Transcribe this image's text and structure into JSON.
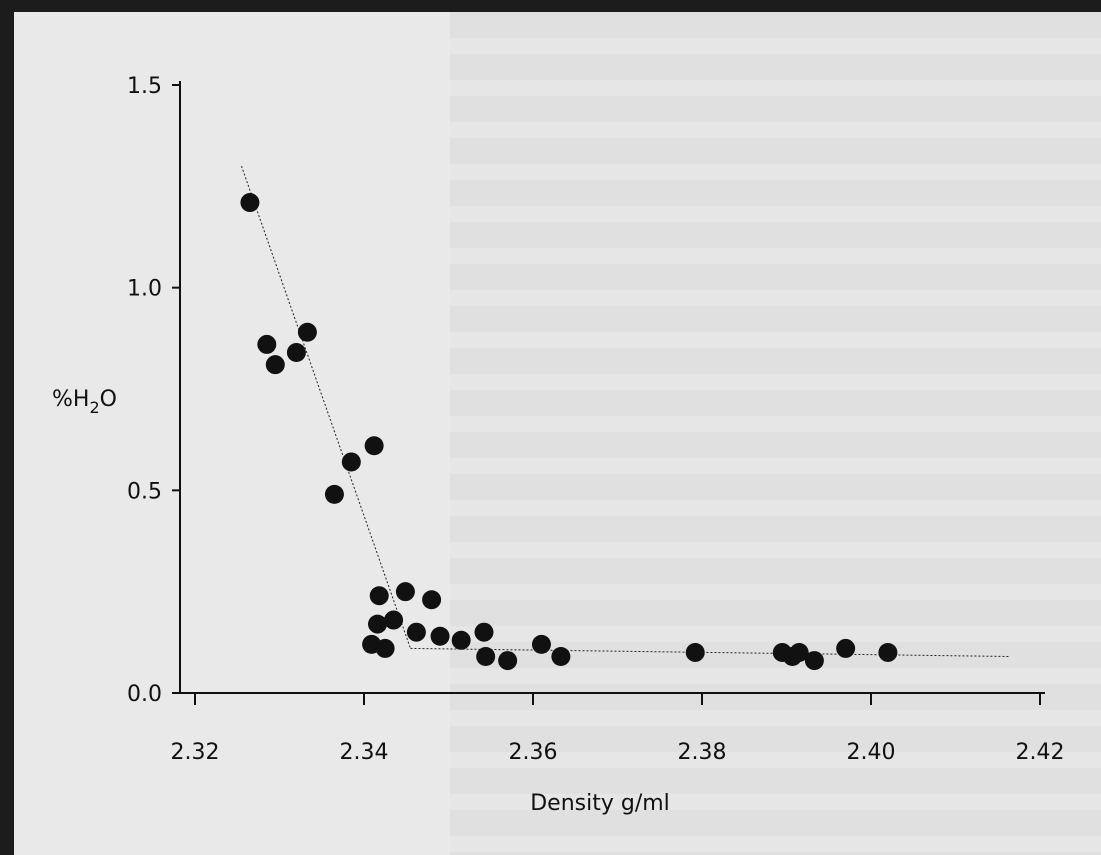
{
  "chart_data": {
    "type": "scatter",
    "xlabel": "Density g/ml",
    "ylabel_main": "%H",
    "ylabel_sub": "2",
    "ylabel_tail": "O",
    "xlim": [
      2.32,
      2.42
    ],
    "ylim": [
      0.0,
      1.5
    ],
    "x_ticks": [
      2.32,
      2.34,
      2.36,
      2.38,
      2.4,
      2.42
    ],
    "x_tick_labels": [
      "2.32",
      "2.34",
      "2.36",
      "2.38",
      "2.40",
      "2.42"
    ],
    "y_ticks": [
      0.0,
      0.5,
      1.0,
      1.5
    ],
    "y_tick_labels": [
      "0.0",
      "0.5",
      "1.0",
      "1.5"
    ],
    "grid": false,
    "points": [
      {
        "x": 2.3265,
        "y": 1.21
      },
      {
        "x": 2.3285,
        "y": 0.86
      },
      {
        "x": 2.3295,
        "y": 0.81
      },
      {
        "x": 2.332,
        "y": 0.84
      },
      {
        "x": 2.3333,
        "y": 0.89
      },
      {
        "x": 2.3385,
        "y": 0.57
      },
      {
        "x": 2.3412,
        "y": 0.61
      },
      {
        "x": 2.3365,
        "y": 0.49
      },
      {
        "x": 2.3418,
        "y": 0.24
      },
      {
        "x": 2.3449,
        "y": 0.25
      },
      {
        "x": 2.348,
        "y": 0.23
      },
      {
        "x": 2.3416,
        "y": 0.17
      },
      {
        "x": 2.3435,
        "y": 0.18
      },
      {
        "x": 2.3409,
        "y": 0.12
      },
      {
        "x": 2.3425,
        "y": 0.11
      },
      {
        "x": 2.3462,
        "y": 0.15
      },
      {
        "x": 2.349,
        "y": 0.14
      },
      {
        "x": 2.3515,
        "y": 0.13
      },
      {
        "x": 2.3542,
        "y": 0.15
      },
      {
        "x": 2.3544,
        "y": 0.09
      },
      {
        "x": 2.357,
        "y": 0.08
      },
      {
        "x": 2.361,
        "y": 0.12
      },
      {
        "x": 2.3633,
        "y": 0.09
      },
      {
        "x": 2.3792,
        "y": 0.1
      },
      {
        "x": 2.3895,
        "y": 0.1
      },
      {
        "x": 2.3907,
        "y": 0.09
      },
      {
        "x": 2.3915,
        "y": 0.1
      },
      {
        "x": 2.3933,
        "y": 0.08
      },
      {
        "x": 2.397,
        "y": 0.11
      },
      {
        "x": 2.402,
        "y": 0.1
      }
    ],
    "fit_lines": [
      {
        "x": [
          2.3255,
          2.3455
        ],
        "y": [
          1.3,
          0.11
        ]
      },
      {
        "x": [
          2.3455,
          2.4165
        ],
        "y": [
          0.11,
          0.09
        ]
      }
    ]
  }
}
